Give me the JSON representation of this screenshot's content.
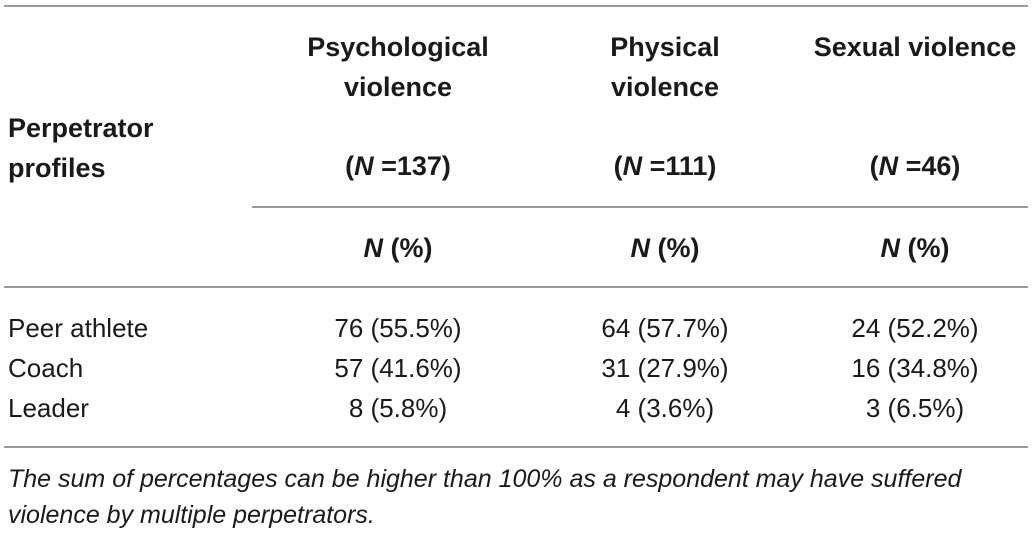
{
  "table": {
    "stub_header": [
      "Perpetrator",
      "profiles"
    ],
    "columns": [
      {
        "title_lines": [
          "Psychological",
          "violence"
        ],
        "n_label": "N",
        "n_value": " =137",
        "stat_label": "N",
        "stat_unit": " (%)"
      },
      {
        "title_lines": [
          "Physical",
          "violence"
        ],
        "n_label": "N",
        "n_value": " =111",
        "stat_label": "N",
        "stat_unit": " (%)"
      },
      {
        "title_lines": [
          "Sexual violence"
        ],
        "n_label": "N",
        "n_value": " =46",
        "stat_label": "N",
        "stat_unit": " (%)"
      }
    ],
    "rows": [
      {
        "label": "Peer athlete",
        "values": [
          "76 (55.5%)",
          "64 (57.7%)",
          "24 (52.2%)"
        ]
      },
      {
        "label": "Coach",
        "values": [
          "57 (41.6%)",
          "31 (27.9%)",
          "16 (34.8%)"
        ]
      },
      {
        "label": "Leader",
        "values": [
          "8 (5.8%)",
          "4 (3.6%)",
          "3 (6.5%)"
        ]
      }
    ]
  },
  "footnote": "The sum of percentages can be higher than 100% as a respondent may have suffered violence by multiple perpetrators.",
  "colors": {
    "rule": "#9a9a9a",
    "text": "#1a1a1a"
  }
}
